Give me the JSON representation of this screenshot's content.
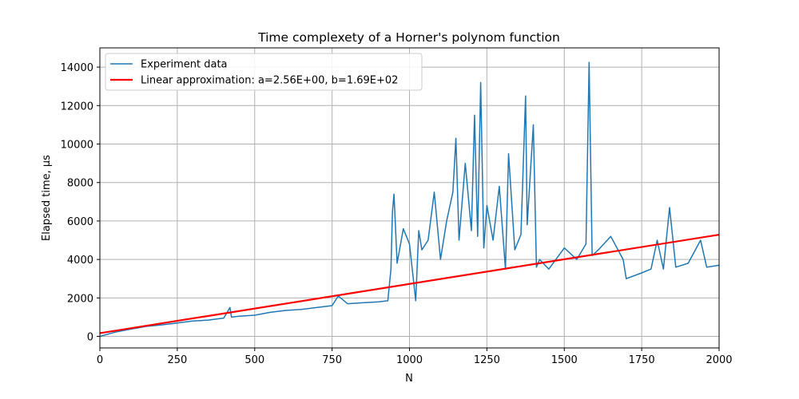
{
  "chart_data": {
    "type": "line",
    "title": "Time complexety of a Horner's polynom function",
    "xlabel": "N",
    "ylabel": "Elapsed time, μs",
    "xlim": [
      0,
      2000
    ],
    "ylim": [
      -600,
      15000
    ],
    "xticks": [
      0,
      250,
      500,
      750,
      1000,
      1250,
      1500,
      1750,
      2000
    ],
    "yticks": [
      0,
      2000,
      4000,
      6000,
      8000,
      10000,
      12000,
      14000
    ],
    "grid": true,
    "legend_position": "top-left",
    "series": [
      {
        "name": "Experiment data",
        "color": "#1f77b4",
        "x": [
          0,
          50,
          100,
          150,
          200,
          250,
          300,
          350,
          400,
          420,
          425,
          450,
          500,
          550,
          600,
          650,
          700,
          750,
          770,
          800,
          850,
          900,
          930,
          940,
          945,
          950,
          960,
          980,
          1000,
          1020,
          1030,
          1040,
          1060,
          1080,
          1100,
          1120,
          1140,
          1150,
          1160,
          1180,
          1200,
          1210,
          1220,
          1230,
          1240,
          1250,
          1270,
          1290,
          1310,
          1320,
          1340,
          1360,
          1375,
          1380,
          1400,
          1410,
          1420,
          1450,
          1500,
          1540,
          1570,
          1580,
          1590,
          1610,
          1650,
          1690,
          1700,
          1750,
          1780,
          1800,
          1820,
          1840,
          1860,
          1900,
          1940,
          1960,
          2000
        ],
        "y": [
          0,
          220,
          380,
          520,
          600,
          700,
          800,
          850,
          950,
          1500,
          1000,
          1050,
          1100,
          1250,
          1350,
          1400,
          1500,
          1600,
          2100,
          1700,
          1750,
          1800,
          1850,
          3500,
          6500,
          7400,
          3800,
          5600,
          4800,
          1850,
          5500,
          4500,
          5000,
          7500,
          4000,
          6000,
          7500,
          10300,
          5000,
          9000,
          5500,
          11500,
          5200,
          13200,
          4600,
          6800,
          5000,
          7800,
          3500,
          9500,
          4500,
          5300,
          12500,
          5800,
          11000,
          3600,
          4000,
          3500,
          4600,
          4000,
          4800,
          14250,
          4200,
          4500,
          5200,
          4000,
          3000,
          3300,
          3500,
          5000,
          3500,
          6700,
          3600,
          3800,
          5000,
          3600,
          3700
        ]
      },
      {
        "name": "Linear approximation: a=2.56E+00, b=1.69E+02",
        "color": "#ff0000",
        "x": [
          0,
          2000
        ],
        "y": [
          169,
          5289
        ]
      }
    ]
  }
}
